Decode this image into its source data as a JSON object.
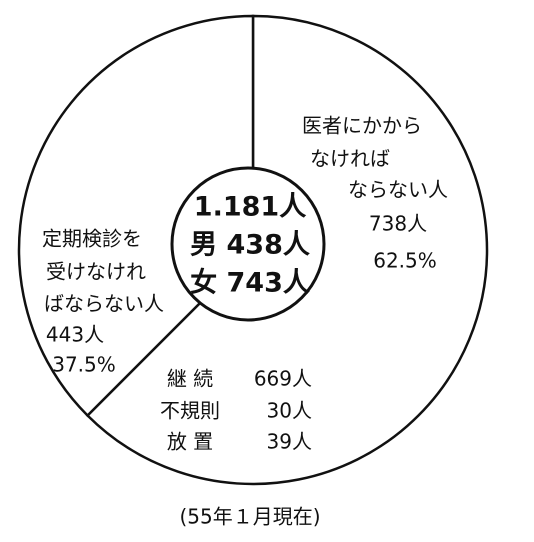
{
  "chart_data": {
    "type": "pie",
    "center_label": [
      "1.181人",
      "男 438人",
      "女 743人"
    ],
    "categories": [
      [
        "医者にかから",
        "なければ",
        "ならない人"
      ],
      [
        "定期検診を",
        "受けなけれ",
        "ばならない人"
      ]
    ],
    "values": [
      62.5,
      37.5
    ],
    "value_labels": [
      "62.5%",
      "37.5%"
    ],
    "count_labels": [
      "738人",
      "443人"
    ],
    "breakdown": {
      "labels": [
        "継 続",
        "不規則",
        "放 置"
      ],
      "value_labels": [
        "669人",
        "30人",
        "39人"
      ]
    },
    "note": "(55年１月現在)",
    "color": "#ffffff",
    "stroke": "#111111"
  }
}
